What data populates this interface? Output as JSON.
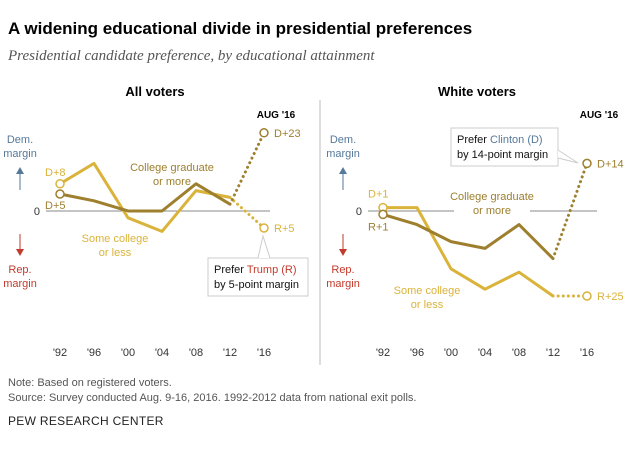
{
  "title": "A widening educational divide in presidential preferences",
  "subtitle": "Presidential candidate preference, by educational attainment",
  "notes": [
    "Note: Based on registered voters.",
    "Source: Survey conducted Aug. 9-16, 2016. 1992-2012 data from national exit polls."
  ],
  "source_org": "PEW RESEARCH CENTER",
  "colors": {
    "college_grad": "#9d7f2e",
    "some_college": "#dab33a",
    "dem": "#55799a",
    "rep": "#c43a2c",
    "axis": "#777777"
  },
  "axis_labels": {
    "dem": [
      "Dem.",
      "margin"
    ],
    "rep": [
      "Rep.",
      "margin"
    ],
    "zero": "0",
    "latest": "AUG '16"
  },
  "chart_data": [
    {
      "type": "line",
      "title": "All voters",
      "x": [
        "'92",
        "'96",
        "'00",
        "'04",
        "'08",
        "'12",
        "'16"
      ],
      "ylabel": "Dem. margin (positive) / Rep. margin (negative)",
      "ylim": [
        -25,
        25
      ],
      "series": [
        {
          "name": "College graduate or more",
          "name_lines": [
            "College graduate",
            "or more"
          ],
          "values": [
            5,
            3,
            0,
            0,
            8,
            2,
            23
          ],
          "dotted_last_segment": true,
          "labels": {
            "first": "D+5",
            "last": "D+23"
          }
        },
        {
          "name": "Some college or less",
          "name_lines": [
            "Some college",
            "or less"
          ],
          "values": [
            8,
            14,
            -2,
            -6,
            6,
            4,
            -5
          ],
          "dotted_last_segment": true,
          "labels": {
            "first": "D+8",
            "last": "R+5"
          }
        }
      ],
      "callout": {
        "pre": "Prefer ",
        "candidate": "Trump (R)",
        "line2": "by 5-point margin"
      }
    },
    {
      "type": "line",
      "title": "White voters",
      "x": [
        "'92",
        "'96",
        "'00",
        "'04",
        "'08",
        "'12",
        "'16"
      ],
      "ylabel": "Dem. margin (positive) / Rep. margin (negative)",
      "ylim": [
        -25,
        25
      ],
      "series": [
        {
          "name": "College graduate or more",
          "name_lines": [
            "College graduate",
            "or more"
          ],
          "values": [
            -1,
            -4,
            -9,
            -11,
            -4,
            -14,
            14
          ],
          "dotted_last_segment": true,
          "labels": {
            "first": "R+1",
            "last": "D+14"
          }
        },
        {
          "name": "Some college or less",
          "name_lines": [
            "Some college",
            "or less"
          ],
          "values": [
            1,
            1,
            -17,
            -23,
            -18,
            -25,
            -25
          ],
          "dotted_last_segment": true,
          "labels": {
            "first": "D+1",
            "last": "R+25"
          }
        }
      ],
      "callout": {
        "pre": "Prefer ",
        "candidate": "Clinton (D)",
        "line2": "by 14-point margin"
      }
    }
  ]
}
